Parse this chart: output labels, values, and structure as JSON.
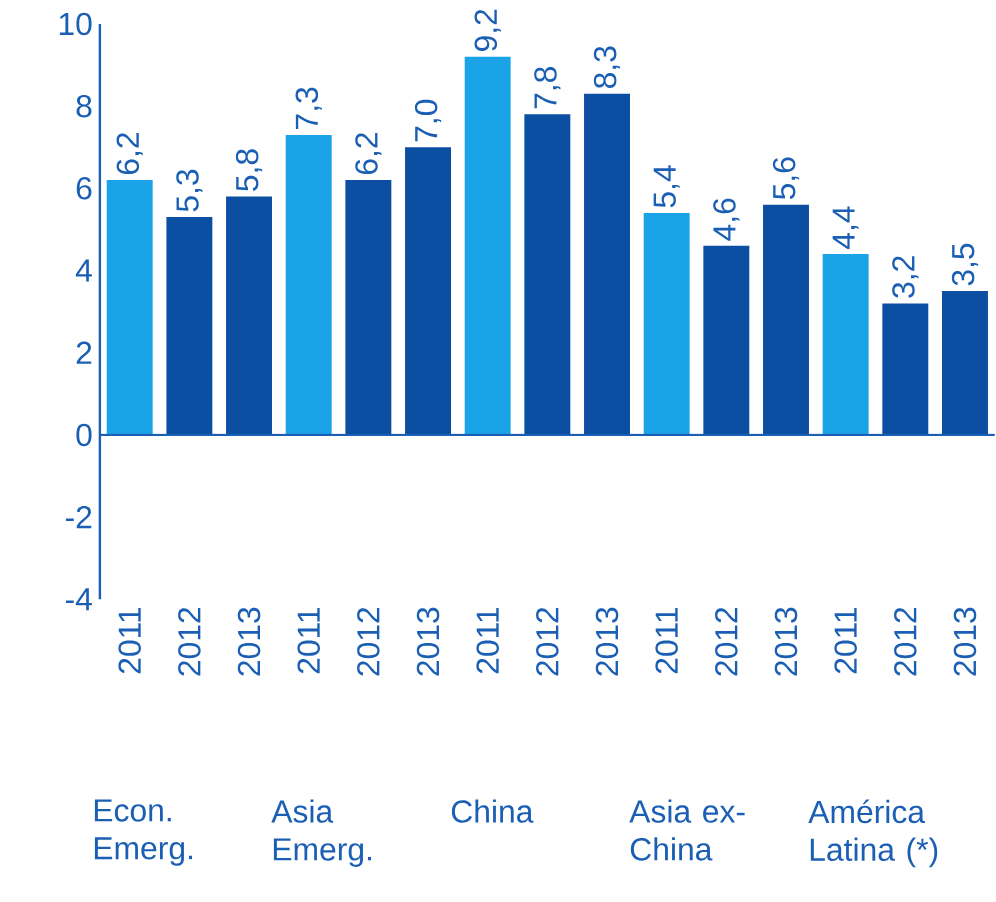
{
  "chart_data": {
    "type": "bar",
    "categories": [
      "2011",
      "2012",
      "2013",
      "2011",
      "2012",
      "2013",
      "2011",
      "2012",
      "2013",
      "2011",
      "2012",
      "2013",
      "2011",
      "2012",
      "2013"
    ],
    "values": [
      6.2,
      5.3,
      5.8,
      7.3,
      6.2,
      7.0,
      9.2,
      7.8,
      8.3,
      5.4,
      4.6,
      5.6,
      4.4,
      3.2,
      3.5
    ],
    "value_labels": [
      "6,2",
      "5,3",
      "5,8",
      "7,3",
      "6,2",
      "7,0",
      "9,2",
      "7,8",
      "8,3",
      "5,4",
      "4,6",
      "5,6",
      "4,4",
      "3,2",
      "3,5"
    ],
    "colors": [
      "#1ba3e8",
      "#0b4ea2",
      "#0b4ea2",
      "#1ba3e8",
      "#0b4ea2",
      "#0b4ea2",
      "#1ba3e8",
      "#0b4ea2",
      "#0b4ea2",
      "#1ba3e8",
      "#0b4ea2",
      "#0b4ea2",
      "#1ba3e8",
      "#0b4ea2",
      "#0b4ea2"
    ],
    "annotations": [
      "Econ. Emerg.",
      "Asia Emerg.",
      "China",
      "Asia ex-China",
      "América Latina (*)"
    ],
    "ylim": [
      -4,
      10
    ],
    "yticks": [
      -4,
      -2,
      0,
      2,
      4,
      6,
      8,
      10
    ],
    "ref_lines": [
      {
        "axis": "y",
        "value": 0,
        "color": "#1a5fb4"
      }
    ]
  }
}
